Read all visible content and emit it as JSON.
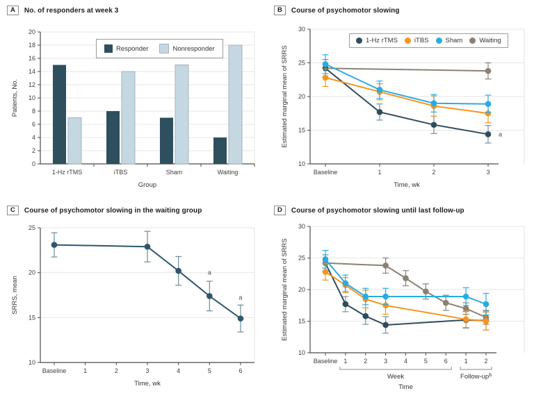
{
  "chart_data": [
    {
      "type": "bar",
      "panel_label": "A",
      "title": "No. of responders at week 3",
      "ylabel": "Patients, No.",
      "xlabel": "Group",
      "categories": [
        "1-Hz rTMS",
        "iTBS",
        "Sham",
        "Waiting"
      ],
      "ylim": [
        0,
        20
      ],
      "yticks": [
        0,
        2,
        4,
        6,
        8,
        10,
        12,
        14,
        16,
        18,
        20
      ],
      "legend_position": "top-center-inside",
      "grid": true,
      "series": [
        {
          "name": "Responder",
          "color": "#2e4f5e",
          "values": [
            15,
            8,
            7,
            4
          ]
        },
        {
          "name": "Nonresponder",
          "color": "#c5d8e2",
          "border": "#9fb4bf",
          "values": [
            7,
            14,
            15,
            18
          ]
        }
      ]
    },
    {
      "type": "line",
      "panel_label": "B",
      "title": "Course of psychomotor slowing",
      "ylabel": "Estimated marginal mean of SRRS",
      "xlabel": "Time, wk",
      "categories": [
        "Baseline",
        "1",
        "2",
        "3"
      ],
      "ylim": [
        10,
        30
      ],
      "yticks": [
        10,
        15,
        20,
        25,
        30
      ],
      "legend_position": "top-inside",
      "grid": true,
      "series": [
        {
          "name": "1-Hz rTMS",
          "color": "#2e4d5c",
          "err_color": "#74909d",
          "values": [
            24.2,
            17.7,
            15.8,
            14.4
          ],
          "err": [
            1.3,
            1.2,
            1.3,
            1.3
          ]
        },
        {
          "name": "iTBS",
          "color": "#f7941e",
          "values": [
            22.8,
            20.7,
            18.6,
            17.5
          ],
          "err": [
            1.3,
            1.2,
            1.5,
            1.4
          ]
        },
        {
          "name": "Sham",
          "color": "#29abe2",
          "values": [
            24.8,
            21.0,
            19.0,
            18.9
          ],
          "err": [
            1.4,
            1.3,
            1.3,
            1.3
          ]
        },
        {
          "name": "Waiting",
          "color": "#8b8173",
          "values": [
            24.2,
            null,
            null,
            23.8
          ],
          "err": [
            null,
            null,
            null,
            1.2
          ]
        }
      ],
      "annotations": [
        {
          "text": "a",
          "x_index": 3,
          "y": 14.4,
          "dx": 15,
          "dy": 3,
          "anchor": "start"
        }
      ]
    },
    {
      "type": "line",
      "panel_label": "C",
      "title": "Course of psychomotor slowing in the waiting group",
      "ylabel": "SRRS, mean",
      "xlabel": "Time, wk",
      "categories": [
        "Baseline",
        "1",
        "2",
        "3",
        "4",
        "5",
        "6"
      ],
      "ylim": [
        10,
        25
      ],
      "yticks": [
        10,
        15,
        20,
        25
      ],
      "grid": true,
      "series": [
        {
          "color": "#2f566b",
          "err_color": "#6b8c9c",
          "values": [
            23.1,
            null,
            null,
            22.9,
            20.2,
            17.4,
            14.9
          ],
          "err": [
            1.35,
            null,
            null,
            1.7,
            1.6,
            1.65,
            1.5
          ]
        }
      ],
      "annotations": [
        {
          "text": "a",
          "x_index": 5,
          "y": 19.8,
          "dx": 0,
          "dy": 0,
          "anchor": "middle"
        },
        {
          "text": "a",
          "x_index": 6,
          "y": 17.0,
          "dx": 0,
          "dy": 0,
          "anchor": "middle"
        }
      ]
    },
    {
      "type": "line",
      "panel_label": "D",
      "title": "Course of psychomotor slowing until last follow-up",
      "ylabel": "Estimated marginal mean of SRRS",
      "xlabel": "Time",
      "categories": [
        "Baseline",
        "1",
        "2",
        "3",
        "4",
        "5",
        "6",
        "1",
        "2"
      ],
      "x_groups": [
        {
          "label": "Week",
          "from": 1,
          "to": 6
        },
        {
          "label": "Follow-up",
          "sup": "b",
          "from": 7,
          "to": 8
        }
      ],
      "ylim": [
        10,
        30
      ],
      "yticks": [
        10,
        15,
        20,
        25,
        30
      ],
      "grid": true,
      "series": [
        {
          "name": "1-Hz rTMS",
          "color": "#2e4d5c",
          "err_color": "#74909d",
          "values": [
            24.2,
            17.7,
            15.8,
            14.4,
            null,
            null,
            null,
            15.2,
            15.1
          ],
          "err": [
            1.3,
            1.2,
            1.3,
            1.3,
            null,
            null,
            null,
            1.3,
            1.5
          ]
        },
        {
          "name": "iTBS",
          "color": "#f7941e",
          "values": [
            22.8,
            20.7,
            18.5,
            17.5,
            null,
            null,
            null,
            15.3,
            15.0
          ],
          "err": [
            1.3,
            1.2,
            1.4,
            1.4,
            null,
            null,
            null,
            1.3,
            1.4
          ]
        },
        {
          "name": "Sham",
          "color": "#29abe2",
          "values": [
            24.8,
            21.0,
            18.9,
            18.9,
            null,
            null,
            null,
            18.9,
            17.7
          ],
          "err": [
            1.4,
            1.3,
            1.3,
            1.3,
            null,
            null,
            null,
            1.4,
            1.7
          ]
        },
        {
          "name": "Waiting",
          "color": "#8b8173",
          "values": [
            24.2,
            null,
            null,
            23.8,
            21.8,
            19.7,
            17.9,
            17.0,
            15.6
          ],
          "err": [
            null,
            null,
            null,
            1.2,
            1.2,
            1.2,
            1.2,
            0.9,
            1.1
          ]
        }
      ]
    }
  ]
}
